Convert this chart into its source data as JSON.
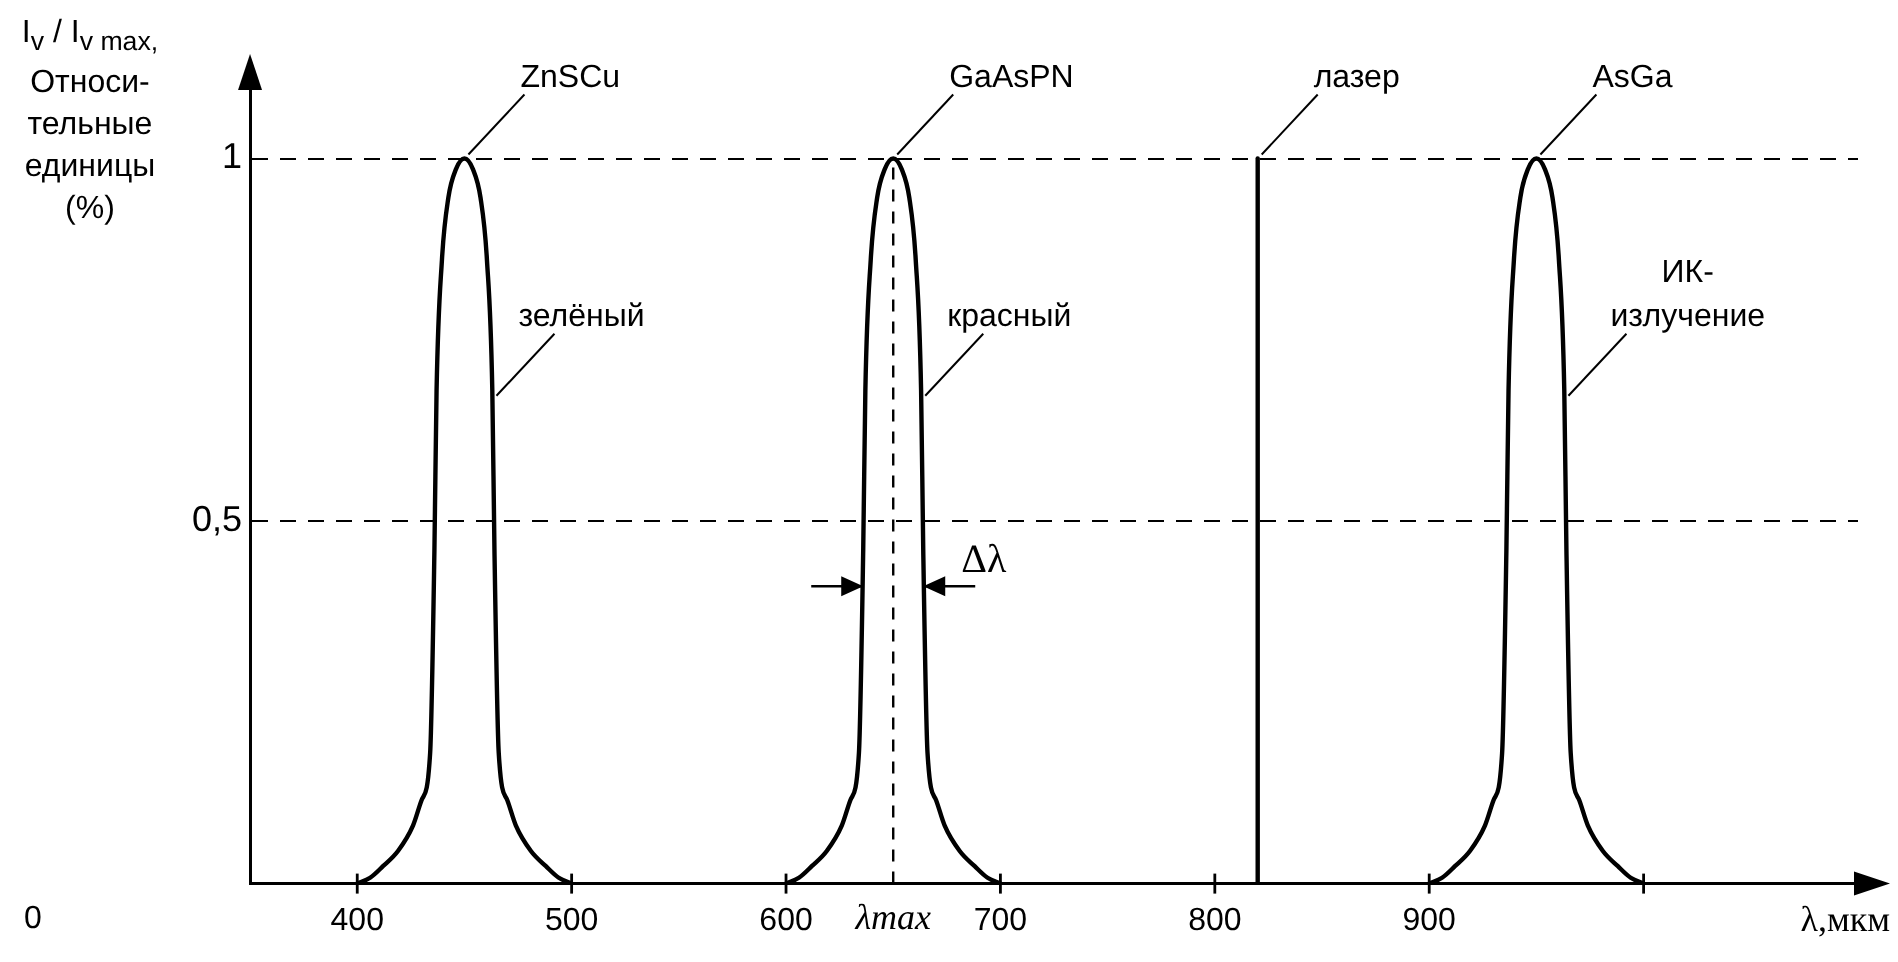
{
  "chart_data": {
    "type": "line",
    "ylabel": "I$_{v}$ / I$_{v max,}$ Относи-тельные единицы (%)",
    "xlabel": "λ,мкм",
    "xlim": [
      350,
      1100
    ],
    "xticks": [
      400,
      500,
      600,
      700,
      800,
      900,
      {
        "value": 1000,
        "label": null
      }
    ],
    "ylim": [
      0,
      1.1
    ],
    "yticks": [
      {
        "value": 0.5,
        "label": "0,5"
      },
      1
    ],
    "grid": "y",
    "legend": false,
    "series": [
      {
        "name": "ZnSCu",
        "color": "#000000",
        "x": [
          400,
          406,
          412,
          419,
          426,
          430,
          434,
          436,
          437,
          439.5,
          442.5,
          446,
          450,
          454,
          457.5,
          460.5,
          463,
          464,
          466,
          470,
          474,
          481,
          488,
          494,
          500
        ],
        "values": [
          0,
          0.008,
          0.024,
          0.045,
          0.08,
          0.115,
          0.18,
          0.46,
          0.68,
          0.86,
          0.946,
          0.985,
          1,
          0.985,
          0.946,
          0.86,
          0.68,
          0.46,
          0.18,
          0.115,
          0.08,
          0.045,
          0.024,
          0.008,
          0
        ]
      },
      {
        "name": "GaAsPN",
        "color": "#000000",
        "x": [
          600,
          606,
          612,
          619,
          626,
          630,
          634,
          636,
          637,
          639.5,
          642.5,
          646,
          650,
          654,
          657.5,
          660.5,
          663,
          664,
          666,
          670,
          674,
          681,
          688,
          694,
          700
        ],
        "values": [
          0,
          0.008,
          0.024,
          0.045,
          0.08,
          0.115,
          0.18,
          0.46,
          0.68,
          0.86,
          0.946,
          0.985,
          1,
          0.985,
          0.946,
          0.86,
          0.68,
          0.46,
          0.18,
          0.115,
          0.08,
          0.045,
          0.024,
          0.008,
          0
        ]
      },
      {
        "name": "лазер",
        "color": "#000000",
        "x": [
          820,
          820
        ],
        "values": [
          0,
          1
        ]
      },
      {
        "name": "AsGa",
        "color": "#000000",
        "x": [
          900,
          906,
          912,
          919,
          926,
          930,
          934,
          936,
          937,
          939.5,
          942.5,
          946,
          950,
          954,
          957.5,
          960.5,
          963,
          964,
          966,
          970,
          974,
          981,
          988,
          994,
          1000
        ],
        "values": [
          0,
          0.008,
          0.024,
          0.045,
          0.08,
          0.115,
          0.18,
          0.46,
          0.68,
          0.86,
          0.946,
          0.985,
          1,
          0.985,
          0.946,
          0.86,
          0.68,
          0.46,
          0.18,
          0.115,
          0.08,
          0.045,
          0.024,
          0.008,
          0
        ]
      }
    ],
    "ref_lines": [
      {
        "axis": "x",
        "value": 650,
        "label": "λmax",
        "line_style": "dashed"
      }
    ],
    "annotations": [
      "0",
      {
        "text": "Δλ",
        "x": 650,
        "y": 0.41
      },
      {
        "text": "зелёный",
        "x": 464,
        "y": 0.67
      },
      {
        "text": "красный",
        "x": 664,
        "y": 0.67
      },
      {
        "text": "ИК-излучение",
        "x": 964,
        "y": 0.67
      }
    ]
  }
}
